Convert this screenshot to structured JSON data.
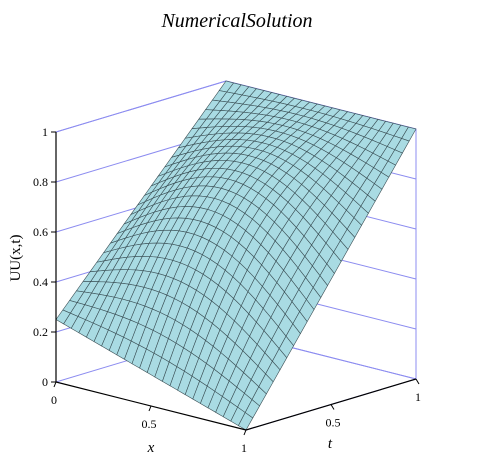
{
  "chart_data": {
    "type": "surface",
    "title": "NumericalSolution",
    "xlabel": "x",
    "ylabel": "t",
    "zlabel": "UU(x,t)",
    "x_range": [
      0,
      1
    ],
    "t_range": [
      0,
      1
    ],
    "z_range": [
      0,
      1
    ],
    "x_ticks": [
      "0",
      "0.5",
      "1"
    ],
    "t_ticks": [
      "0.5",
      "1"
    ],
    "z_ticks": [
      "0",
      "0.2",
      "0.4",
      "0.6",
      "0.8",
      "1"
    ],
    "grid": true,
    "mesh": {
      "x_count": 25,
      "t_count": 25
    },
    "corner_values": {
      "x0_t0": 0.25,
      "x1_t0": 0.0,
      "x0_t1": 1.0,
      "x1_t1": 1.0
    },
    "colors": {
      "surface": "#a9dbe3",
      "mesh": "#3a4f55",
      "box": "#8c8cf0",
      "axes": "#000000"
    }
  }
}
